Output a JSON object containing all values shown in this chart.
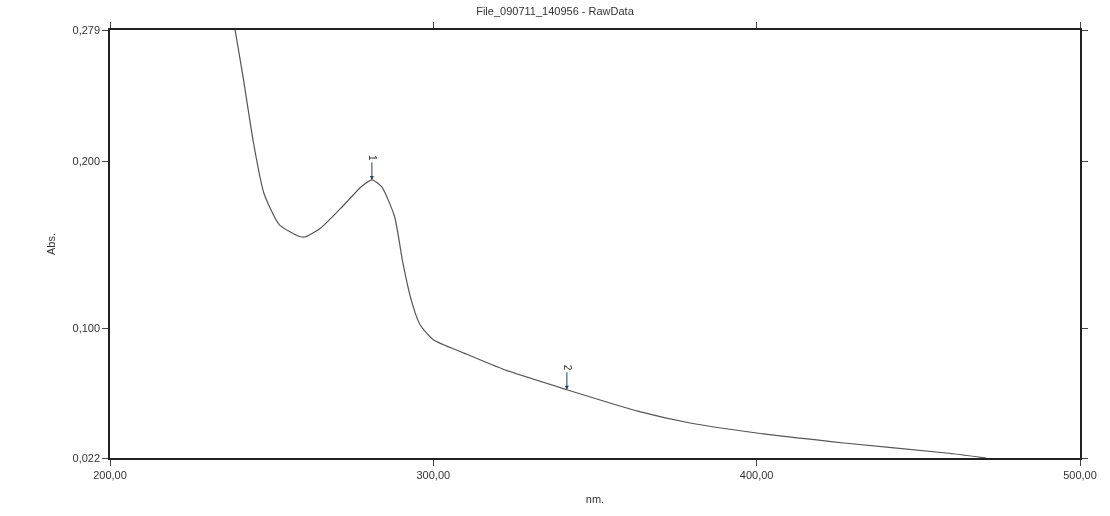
{
  "chart_data": {
    "type": "line",
    "title": "File_090711_140956 - RawData",
    "xlabel": "nm.",
    "ylabel": "Abs.",
    "x": [
      238.7,
      241.3,
      244.4,
      247.6,
      252.4,
      258.7,
      260.3,
      265.1,
      271.4,
      277.8,
      281,
      284,
      288,
      290.5,
      293,
      295.9,
      300,
      309.5,
      322,
      341.3,
      363.5,
      379.4,
      400,
      427,
      458.7,
      471
    ],
    "series": [
      {
        "color": "#555555",
        "values": [
          0.279,
          0.249,
          0.211,
          0.181,
          0.162,
          0.155,
          0.1547,
          0.16,
          0.172,
          0.185,
          0.189,
          0.185,
          0.167,
          0.14,
          0.118,
          0.102,
          0.093,
          0.085,
          0.075,
          0.063,
          0.05,
          0.043,
          0.037,
          0.031,
          0.025,
          0.022
        ]
      }
    ],
    "annotations": [
      {
        "text": "1",
        "x": 281,
        "y": 0.189
      },
      {
        "text": "2",
        "x": 341.3,
        "y": 0.063
      }
    ],
    "xlim": [
      200,
      500
    ],
    "ylim": [
      0.022,
      0.279
    ],
    "xticks": [
      {
        "value": 200,
        "label": "200,00"
      },
      {
        "value": 300,
        "label": "300,00"
      },
      {
        "value": 400,
        "label": "400,00"
      },
      {
        "value": 500,
        "label": "500,00"
      }
    ],
    "yticks": [
      {
        "value": 0.022,
        "label": "0,022"
      },
      {
        "value": 0.1,
        "label": "0,100"
      },
      {
        "value": 0.2,
        "label": "0,200"
      },
      {
        "value": 0.279,
        "label": "0,279"
      }
    ],
    "marker": "none",
    "line_style": "solid"
  }
}
